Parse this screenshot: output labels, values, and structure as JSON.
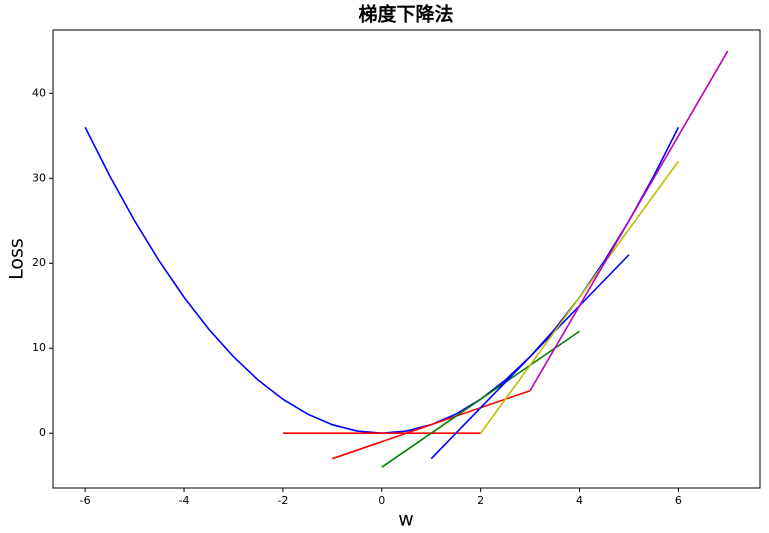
{
  "chart_data": {
    "type": "line",
    "title": "梯度下降法",
    "x_label": "w",
    "y_label": "Loss",
    "xlim": [
      -6.65,
      7.65
    ],
    "ylim": [
      -6.45,
      47.45
    ],
    "xticks": [
      -6,
      -4,
      -2,
      0,
      2,
      4,
      6
    ],
    "yticks": [
      0,
      10,
      20,
      30,
      40
    ],
    "series": [
      {
        "color": "#0000ff",
        "x": [
          -6,
          -5.5,
          -5,
          -4.5,
          -4,
          -3.5,
          -3,
          -2.5,
          -2,
          -1.5,
          -1,
          -0.5,
          0,
          0.5,
          1,
          1.5,
          2,
          2.5,
          3,
          3.5,
          4,
          4.5,
          5,
          5.5,
          6
        ],
        "values": [
          36,
          30.25,
          25,
          20.25,
          16,
          12.25,
          9,
          6.25,
          4,
          2.25,
          1,
          0.25,
          0,
          0.25,
          1,
          2.25,
          4,
          6.25,
          9,
          12.25,
          16,
          20.25,
          25,
          30.25,
          36
        ]
      },
      {
        "color": "#ff0000",
        "x": [
          -2,
          2
        ],
        "values": [
          0,
          0
        ]
      },
      {
        "color": "#ff0000",
        "x": [
          -1,
          3
        ],
        "values": [
          -3,
          5
        ]
      },
      {
        "color": "#008000",
        "x": [
          0,
          4
        ],
        "values": [
          -4,
          12
        ]
      },
      {
        "color": "#0000ff",
        "x": [
          1,
          5
        ],
        "values": [
          -3,
          21
        ]
      },
      {
        "color": "#bfbf00",
        "x": [
          2,
          6
        ],
        "values": [
          0,
          32
        ]
      },
      {
        "color": "#bf00bf",
        "x": [
          3,
          7
        ],
        "values": [
          5,
          45
        ]
      }
    ]
  }
}
